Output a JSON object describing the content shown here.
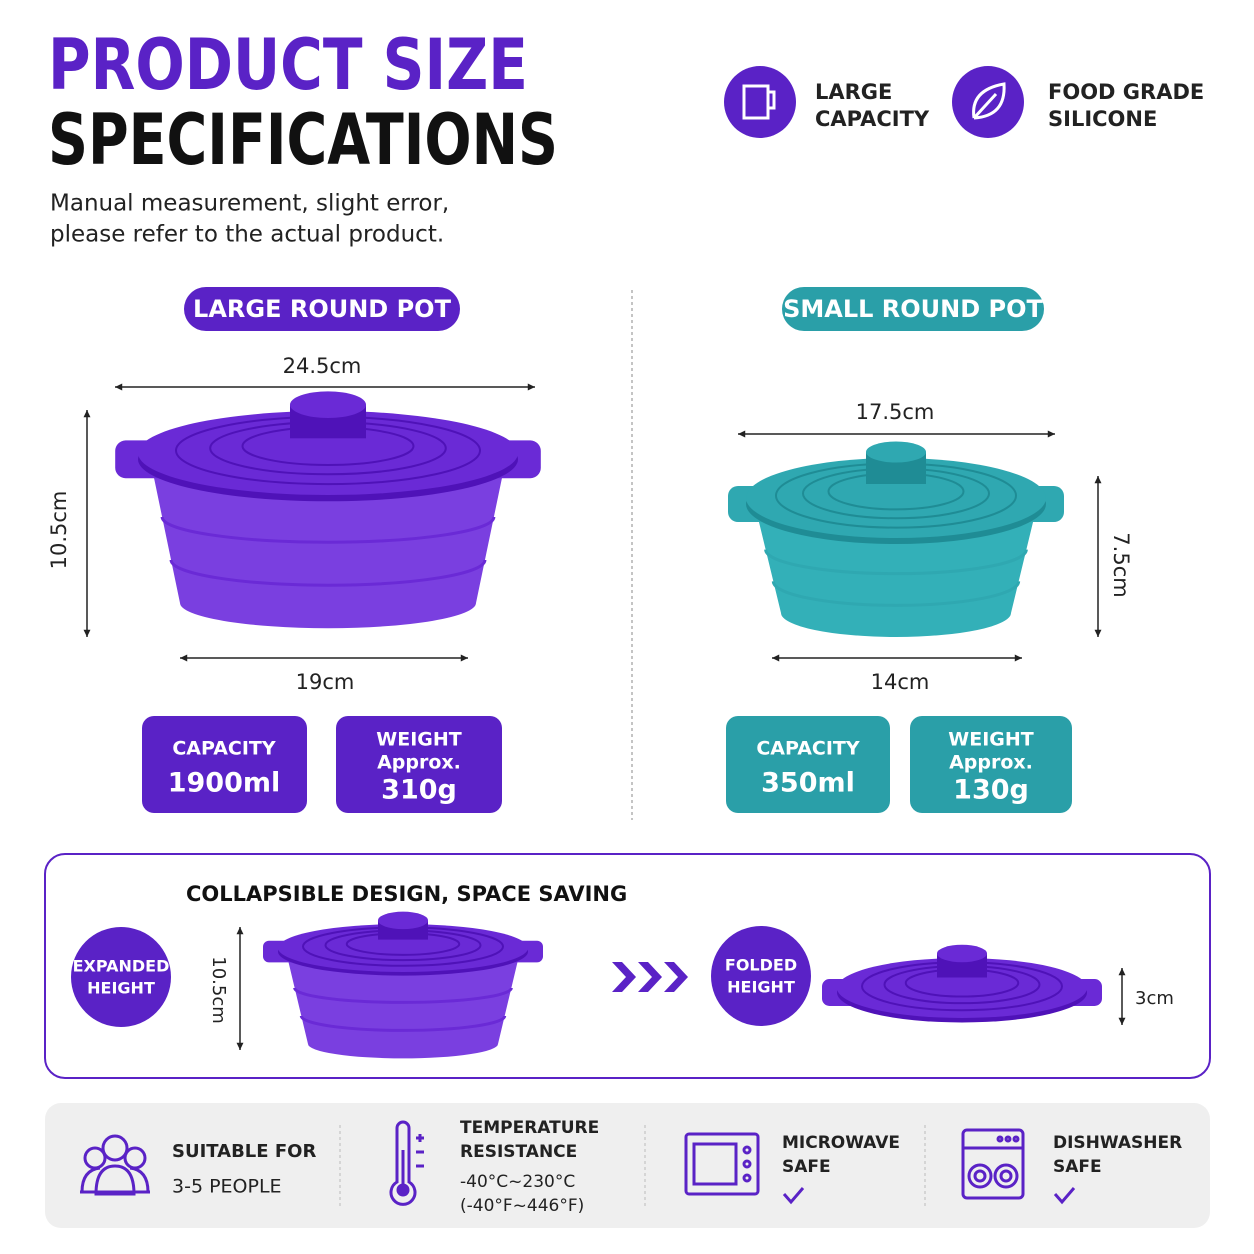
{
  "header": {
    "title_line1": "PRODUCT SIZE",
    "title_line2": "SPECIFICATIONS",
    "note": [
      "Manual measurement, slight error,",
      "please refer to the actual product."
    ]
  },
  "badges": [
    {
      "lines": [
        "LARGE",
        "CAPACITY"
      ]
    },
    {
      "lines": [
        "FOOD GRADE",
        "SILICONE"
      ]
    }
  ],
  "pots": [
    {
      "label": "LARGE ROUND POT",
      "width": "24.5cm",
      "height": "10.5cm",
      "base": "19cm",
      "capacity_label": "CAPACITY",
      "capacity": "1900ml",
      "weight_label": "WEIGHT",
      "weight_prefix": "Approx.",
      "weight": "310g"
    },
    {
      "label": "SMALL ROUND POT",
      "width": "17.5cm",
      "height": "7.5cm",
      "base": "14cm",
      "capacity_label": "CAPACITY",
      "capacity": "350ml",
      "weight_label": "WEIGHT",
      "weight_prefix": "Approx.",
      "weight": "130g"
    }
  ],
  "collapse": {
    "title": "COLLAPSIBLE DESIGN, SPACE SAVING",
    "expanded": [
      "EXPANDED",
      "HEIGHT"
    ],
    "expanded_height": "10.5cm",
    "folded": [
      "FOLDED",
      "HEIGHT"
    ],
    "folded_height": "3cm"
  },
  "features": [
    {
      "lines": [
        "SUITABLE FOR",
        "3-5 PEOPLE"
      ]
    },
    {
      "lines": [
        "TEMPERATURE",
        "RESISTANCE",
        "-40°C~230°C",
        "(-40°F~446°F)"
      ]
    },
    {
      "lines": [
        "MICROWAVE",
        "SAFE"
      ]
    },
    {
      "lines": [
        "DISHWASHER",
        "SAFE"
      ]
    }
  ]
}
